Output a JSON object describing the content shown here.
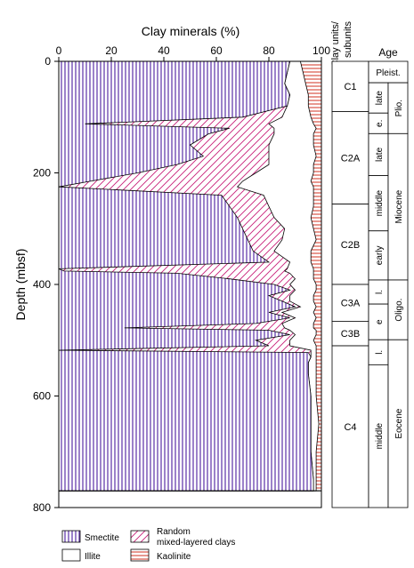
{
  "chart_data": {
    "type": "area",
    "title": "",
    "xlabel": "Clay minerals (%)",
    "ylabel": "Depth (mbsf)",
    "xlim": [
      0,
      100
    ],
    "ylim": [
      0,
      800
    ],
    "x_ticks": [
      "0",
      "20",
      "40",
      "60",
      "80",
      "100"
    ],
    "y_ticks": [
      "0",
      "200",
      "400",
      "600",
      "800"
    ],
    "stacking": "cumulative percent, stacked left to right",
    "series": [
      {
        "name": "Smectite",
        "color": "#5a2ea6",
        "pattern": "vertical-lines",
        "depth": [
          0,
          20,
          40,
          60,
          80,
          100,
          112,
          120,
          130,
          150,
          170,
          185,
          200,
          215,
          225,
          240,
          260,
          280,
          300,
          320,
          340,
          360,
          372,
          376,
          380,
          390,
          400,
          410,
          420,
          430,
          440,
          450,
          460,
          470,
          478,
          482,
          490,
          500,
          510,
          518,
          522,
          530,
          540,
          560,
          600,
          650,
          700,
          750,
          770
        ],
        "cumulative_top": [
          88,
          87,
          86,
          88,
          87,
          70,
          10,
          65,
          57,
          50,
          55,
          45,
          30,
          12,
          0,
          62,
          65,
          68,
          70,
          72,
          74,
          80,
          0,
          2,
          45,
          65,
          82,
          88,
          80,
          85,
          90,
          80,
          88,
          75,
          25,
          80,
          88,
          75,
          80,
          0,
          95,
          96,
          95,
          95,
          96,
          96,
          96,
          97,
          97
        ]
      },
      {
        "name": "Random mixed-layered clays",
        "color": "#c8207a",
        "pattern": "diagonal-lines",
        "depth": [
          0,
          20,
          40,
          60,
          80,
          100,
          112,
          120,
          130,
          150,
          170,
          185,
          200,
          215,
          225,
          240,
          260,
          280,
          300,
          320,
          340,
          360,
          372,
          376,
          380,
          390,
          400,
          410,
          420,
          430,
          440,
          450,
          460,
          470,
          478,
          482,
          490,
          500,
          510,
          518,
          522,
          530,
          540,
          560,
          600,
          650,
          700,
          750,
          770
        ],
        "cumulative_top": [
          88,
          87,
          86,
          88,
          87,
          85,
          80,
          82,
          82,
          80,
          80,
          80,
          75,
          70,
          68,
          78,
          80,
          82,
          86,
          85,
          82,
          88,
          87,
          86,
          88,
          90,
          88,
          90,
          88,
          88,
          92,
          85,
          90,
          85,
          86,
          88,
          90,
          88,
          88,
          96,
          96,
          96,
          95,
          95,
          96,
          96,
          96,
          97,
          97
        ]
      },
      {
        "name": "Illite",
        "color": "#ffffff",
        "pattern": "none",
        "depth": [
          0,
          20,
          40,
          60,
          80,
          100,
          112,
          120,
          130,
          150,
          170,
          185,
          200,
          215,
          225,
          240,
          260,
          280,
          300,
          320,
          340,
          360,
          372,
          376,
          380,
          390,
          400,
          410,
          420,
          430,
          440,
          450,
          460,
          470,
          478,
          482,
          490,
          500,
          510,
          518,
          522,
          530,
          540,
          560,
          600,
          650,
          700,
          750,
          770
        ],
        "cumulative_top": [
          92,
          93,
          94,
          95,
          95,
          96,
          97,
          98,
          97,
          97,
          98,
          97,
          97,
          96,
          97,
          97,
          97,
          96,
          97,
          98,
          96,
          96,
          97,
          97,
          97,
          97,
          98,
          98,
          97,
          97,
          98,
          97,
          98,
          97,
          97,
          98,
          98,
          97,
          98,
          98,
          98,
          98,
          98,
          98,
          98,
          99,
          98,
          98,
          98
        ]
      },
      {
        "name": "Kaolinite",
        "color": "#d03020",
        "pattern": "horizontal-lines",
        "depth": [
          0,
          770
        ],
        "cumulative_top": [
          100,
          100
        ]
      }
    ],
    "clay_units": [
      {
        "label": "C1",
        "from": 0,
        "to": 45
      },
      {
        "label": "C2A",
        "from": 45,
        "to": 128
      },
      {
        "label": "C2B",
        "from": 128,
        "to": 200
      },
      {
        "label": "C3A",
        "from": 200,
        "to": 233
      },
      {
        "label": "C3B",
        "from": 233,
        "to": 255
      },
      {
        "label": "C4",
        "from": 255,
        "to": 400
      }
    ],
    "age_columns": [
      {
        "label": "Pleist.",
        "from": 0,
        "to": 24,
        "col": "full"
      },
      {
        "label": "late",
        "from": 24,
        "to": 58,
        "col": "inner"
      },
      {
        "label": "e.",
        "from": 58,
        "to": 81,
        "col": "inner"
      },
      {
        "label": "Plio.",
        "from": 24,
        "to": 81,
        "col": "outer"
      },
      {
        "label": "late",
        "from": 81,
        "to": 128,
        "col": "inner"
      },
      {
        "label": "middle",
        "from": 128,
        "to": 190,
        "col": "inner"
      },
      {
        "label": "early",
        "from": 190,
        "to": 245,
        "col": "inner"
      },
      {
        "label": "Miocene",
        "from": 81,
        "to": 245,
        "col": "outer"
      },
      {
        "label": "l.",
        "from": 245,
        "to": 272,
        "col": "inner"
      },
      {
        "label": "e",
        "from": 272,
        "to": 312,
        "col": "inner"
      },
      {
        "label": "Oligo.",
        "from": 245,
        "to": 312,
        "col": "outer"
      },
      {
        "label": "l.",
        "from": 312,
        "to": 340,
        "col": "inner"
      },
      {
        "label": "middle",
        "from": 340,
        "to": 500,
        "col": "inner"
      },
      {
        "label": "Eocene",
        "from": 312,
        "to": 500,
        "col": "outer"
      }
    ],
    "clay_units_header": [
      "Clay units/",
      "subunits"
    ],
    "age_header": "Age",
    "legend": [
      {
        "label": "Smectite",
        "pattern": "vertical-lines"
      },
      {
        "label": "Random mixed-layered clays",
        "lines": [
          "Random",
          "mixed-layered clays"
        ],
        "pattern": "diagonal-lines"
      },
      {
        "label": "Illite",
        "pattern": "none"
      },
      {
        "label": "Kaolinite",
        "pattern": "horizontal-lines"
      }
    ],
    "grid": false,
    "legend_position": "bottom-left"
  }
}
